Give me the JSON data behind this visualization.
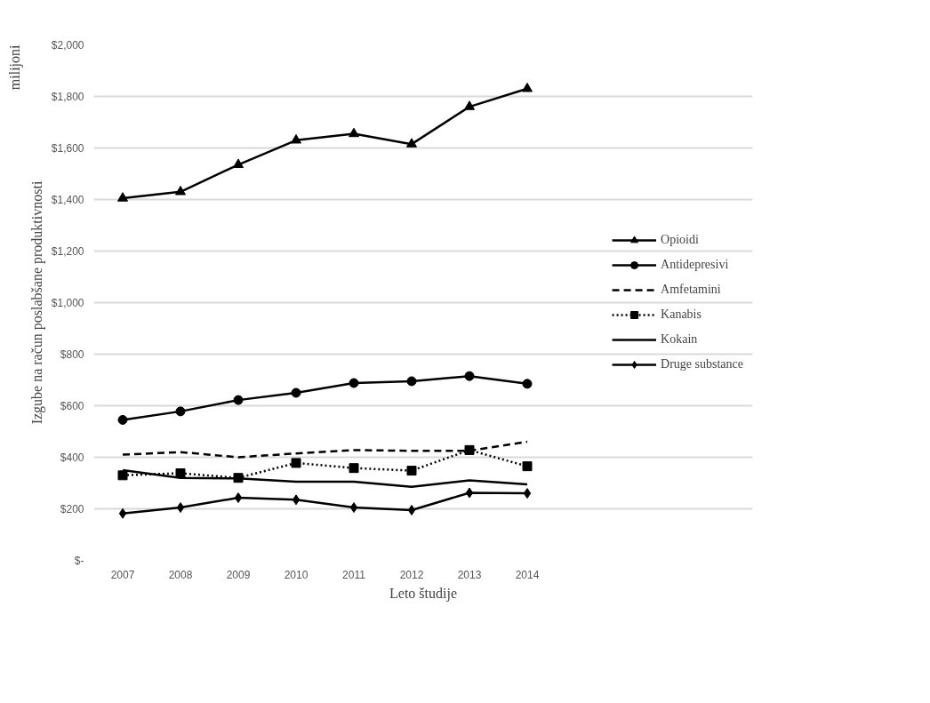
{
  "chart_data": {
    "type": "line",
    "xlabel": "Leto študije",
    "ylabel": "Izgube na račun poslabšane produktivnosti",
    "annotations": [
      "milijoni"
    ],
    "categories": [
      "2007",
      "2008",
      "2009",
      "2010",
      "2011",
      "2012",
      "2013",
      "2014"
    ],
    "series": [
      {
        "name": "Opioidi",
        "color": "#000000",
        "marker": "triangle",
        "line_style": "solid",
        "values": [
          1405,
          1430,
          1535,
          1630,
          1655,
          1615,
          1760,
          1830
        ]
      },
      {
        "name": "Antidepresivi",
        "color": "#000000",
        "marker": "circle",
        "line_style": "solid",
        "values": [
          545,
          578,
          622,
          650,
          688,
          695,
          715,
          685
        ]
      },
      {
        "name": "Amfetamini",
        "color": "#000000",
        "marker": "none",
        "line_style": "dashed",
        "values": [
          410,
          420,
          400,
          415,
          428,
          425,
          425,
          460
        ]
      },
      {
        "name": "Kanabis",
        "color": "#000000",
        "marker": "square",
        "line_style": "dotted",
        "values": [
          330,
          338,
          320,
          378,
          358,
          348,
          428,
          365
        ]
      },
      {
        "name": "Kokain",
        "color": "#000000",
        "marker": "none",
        "line_style": "solid",
        "values": [
          350,
          320,
          318,
          305,
          305,
          285,
          310,
          295
        ]
      },
      {
        "name": "Druge substance",
        "color": "#000000",
        "marker": "diamond",
        "line_style": "solid",
        "values": [
          182,
          205,
          243,
          235,
          205,
          195,
          262,
          260
        ]
      }
    ],
    "ylim": [
      0,
      2000
    ],
    "yticks": [
      {
        "value": 0,
        "label": "$-"
      },
      {
        "value": 200,
        "label": "$200"
      },
      {
        "value": 400,
        "label": "$400"
      },
      {
        "value": 600,
        "label": "$600"
      },
      {
        "value": 800,
        "label": "$800"
      },
      {
        "value": 1000,
        "label": "$1,000"
      },
      {
        "value": 1200,
        "label": "$1,200"
      },
      {
        "value": 1400,
        "label": "$1,400"
      },
      {
        "value": 1600,
        "label": "$1,600"
      },
      {
        "value": 1800,
        "label": "$1,800"
      },
      {
        "value": 2000,
        "label": "$2,000"
      }
    ],
    "grid": "y",
    "legend": "right"
  }
}
